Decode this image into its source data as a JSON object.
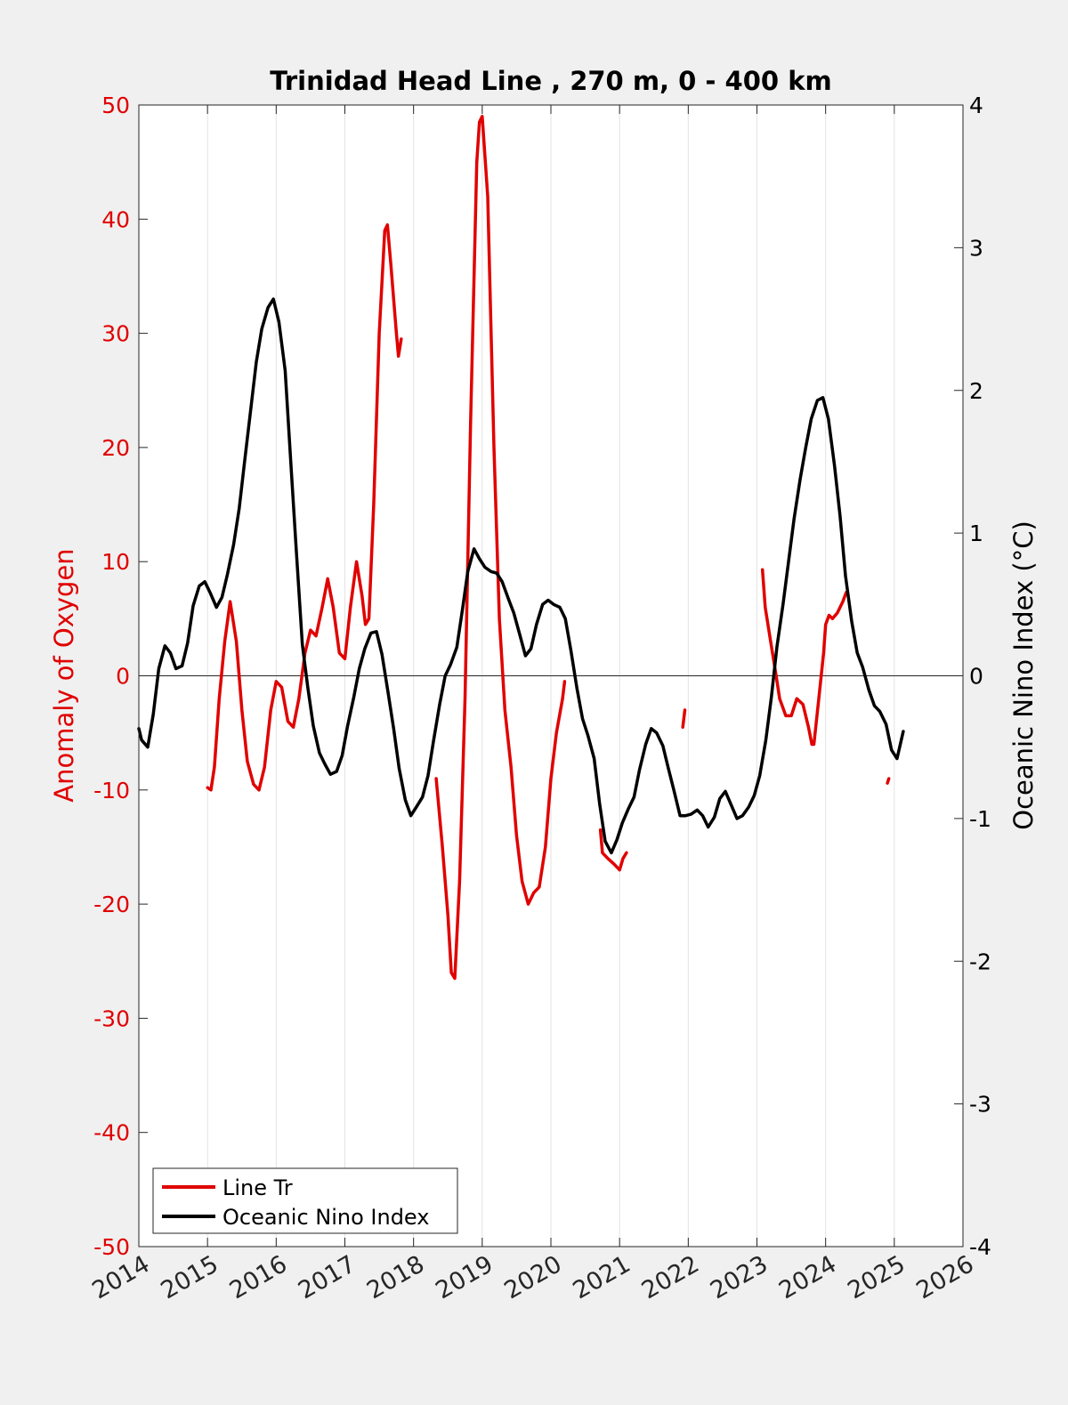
{
  "chart_data": {
    "type": "line",
    "title": "Trinidad Head Line , 270 m, 0 - 400 km",
    "xlabel": "",
    "ylabel": "Anomaly of Oxygen",
    "y2label": "Oceanic Nino Index (°C)",
    "xlim": [
      2014,
      2026
    ],
    "ylim": [
      -50,
      50
    ],
    "y2lim": [
      -4,
      4
    ],
    "x_ticks": [
      "2014",
      "2015",
      "2016",
      "2017",
      "2018",
      "2019",
      "2020",
      "2021",
      "2022",
      "2023",
      "2024",
      "2025",
      "2026"
    ],
    "y_ticks": [
      "-50",
      "-40",
      "-30",
      "-20",
      "-10",
      "0",
      "10",
      "20",
      "30",
      "40",
      "50"
    ],
    "y2_ticks": [
      "-4",
      "-3",
      "-2",
      "-1",
      "0",
      "1",
      "2",
      "3",
      "4"
    ],
    "grid": "vertical",
    "legend": {
      "position": "bottom-left",
      "entries": [
        "Line Tr",
        "Oceanic Nino Index"
      ]
    },
    "colors": {
      "line_tr": "#e00000",
      "oni": "#000000",
      "left_axis": "#e00000",
      "right_axis": "#000000"
    },
    "series": [
      {
        "name": "Line Tr",
        "axis": "left",
        "segments": [
          [
            [
              2015.0,
              -9.8
            ],
            [
              2015.05,
              -10
            ],
            [
              2015.1,
              -8
            ],
            [
              2015.17,
              -2
            ],
            [
              2015.25,
              3
            ],
            [
              2015.33,
              6.5
            ],
            [
              2015.42,
              3
            ],
            [
              2015.5,
              -3
            ],
            [
              2015.58,
              -7.5
            ],
            [
              2015.67,
              -9.5
            ],
            [
              2015.75,
              -10
            ],
            [
              2015.83,
              -8
            ],
            [
              2015.92,
              -3
            ],
            [
              2016.0,
              -0.5
            ],
            [
              2016.08,
              -1
            ],
            [
              2016.17,
              -4
            ],
            [
              2016.25,
              -4.5
            ],
            [
              2016.33,
              -2
            ],
            [
              2016.42,
              2
            ],
            [
              2016.5,
              4
            ],
            [
              2016.58,
              3.5
            ],
            [
              2016.67,
              6
            ],
            [
              2016.75,
              8.5
            ],
            [
              2016.83,
              6
            ],
            [
              2016.92,
              2
            ],
            [
              2017.0,
              1.5
            ],
            [
              2017.08,
              6
            ],
            [
              2017.17,
              10
            ],
            [
              2017.25,
              7
            ],
            [
              2017.3,
              4.5
            ],
            [
              2017.35,
              5
            ],
            [
              2017.42,
              15
            ],
            [
              2017.5,
              30
            ],
            [
              2017.58,
              39
            ],
            [
              2017.62,
              39.5
            ],
            [
              2017.67,
              36
            ],
            [
              2017.75,
              30
            ],
            [
              2017.78,
              28
            ],
            [
              2017.82,
              29.5
            ]
          ],
          [
            [
              2018.33,
              -9
            ],
            [
              2018.42,
              -15
            ],
            [
              2018.5,
              -21
            ],
            [
              2018.55,
              -26
            ],
            [
              2018.6,
              -26.5
            ],
            [
              2018.67,
              -18
            ],
            [
              2018.75,
              -2
            ],
            [
              2018.83,
              22
            ],
            [
              2018.92,
              45
            ],
            [
              2018.96,
              48.5
            ],
            [
              2019.0,
              49
            ],
            [
              2019.08,
              42
            ],
            [
              2019.17,
              20
            ],
            [
              2019.25,
              5
            ],
            [
              2019.33,
              -3
            ],
            [
              2019.42,
              -8
            ],
            [
              2019.5,
              -14
            ],
            [
              2019.58,
              -18
            ],
            [
              2019.67,
              -20
            ],
            [
              2019.75,
              -19
            ],
            [
              2019.83,
              -18.5
            ],
            [
              2019.92,
              -15
            ],
            [
              2020.0,
              -9
            ],
            [
              2020.08,
              -5
            ],
            [
              2020.17,
              -2
            ],
            [
              2020.2,
              -0.5
            ]
          ],
          [
            [
              2020.72,
              -13.5
            ],
            [
              2020.75,
              -15.5
            ],
            [
              2020.83,
              -16
            ],
            [
              2020.92,
              -16.5
            ],
            [
              2021.0,
              -17
            ],
            [
              2021.05,
              -16
            ],
            [
              2021.1,
              -15.5
            ]
          ],
          [
            [
              2021.92,
              -4.5
            ],
            [
              2021.95,
              -3
            ]
          ],
          [
            [
              2023.08,
              9.3
            ],
            [
              2023.12,
              6
            ],
            [
              2023.2,
              3
            ],
            [
              2023.28,
              0
            ],
            [
              2023.33,
              -2
            ],
            [
              2023.42,
              -3.5
            ],
            [
              2023.5,
              -3.5
            ],
            [
              2023.58,
              -2
            ],
            [
              2023.67,
              -2.5
            ],
            [
              2023.75,
              -4.5
            ],
            [
              2023.8,
              -6
            ],
            [
              2023.83,
              -6
            ],
            [
              2023.9,
              -2
            ],
            [
              2023.97,
              2
            ],
            [
              2024.0,
              4.5
            ],
            [
              2024.05,
              5.3
            ],
            [
              2024.1,
              5
            ],
            [
              2024.17,
              5.5
            ],
            [
              2024.25,
              6.5
            ],
            [
              2024.3,
              7.3
            ]
          ],
          [
            [
              2024.9,
              -9.4
            ],
            [
              2024.92,
              -9
            ]
          ]
        ]
      },
      {
        "name": "Oceanic Nino Index",
        "axis": "right",
        "segments": [
          [
            [
              2014.0,
              -0.37
            ],
            [
              2014.04,
              -0.45
            ],
            [
              2014.13,
              -0.5
            ],
            [
              2014.21,
              -0.27
            ],
            [
              2014.29,
              0.05
            ],
            [
              2014.38,
              0.21
            ],
            [
              2014.46,
              0.16
            ],
            [
              2014.54,
              0.05
            ],
            [
              2014.63,
              0.07
            ],
            [
              2014.71,
              0.23
            ],
            [
              2014.79,
              0.49
            ],
            [
              2014.88,
              0.63
            ],
            [
              2014.96,
              0.66
            ],
            [
              2015.04,
              0.58
            ],
            [
              2015.13,
              0.48
            ],
            [
              2015.21,
              0.55
            ],
            [
              2015.29,
              0.71
            ],
            [
              2015.38,
              0.92
            ],
            [
              2015.46,
              1.17
            ],
            [
              2015.54,
              1.5
            ],
            [
              2015.63,
              1.87
            ],
            [
              2015.71,
              2.2
            ],
            [
              2015.79,
              2.43
            ],
            [
              2015.88,
              2.58
            ],
            [
              2015.96,
              2.64
            ],
            [
              2016.04,
              2.48
            ],
            [
              2016.13,
              2.14
            ],
            [
              2016.21,
              1.52
            ],
            [
              2016.29,
              0.9
            ],
            [
              2016.38,
              0.22
            ],
            [
              2016.46,
              -0.08
            ],
            [
              2016.54,
              -0.35
            ],
            [
              2016.63,
              -0.54
            ],
            [
              2016.71,
              -0.62
            ],
            [
              2016.79,
              -0.69
            ],
            [
              2016.88,
              -0.67
            ],
            [
              2016.96,
              -0.56
            ],
            [
              2017.04,
              -0.35
            ],
            [
              2017.13,
              -0.15
            ],
            [
              2017.21,
              0.05
            ],
            [
              2017.29,
              0.19
            ],
            [
              2017.38,
              0.3
            ],
            [
              2017.46,
              0.31
            ],
            [
              2017.54,
              0.15
            ],
            [
              2017.63,
              -0.12
            ],
            [
              2017.71,
              -0.37
            ],
            [
              2017.79,
              -0.65
            ],
            [
              2017.88,
              -0.87
            ],
            [
              2017.96,
              -0.98
            ],
            [
              2018.04,
              -0.92
            ],
            [
              2018.13,
              -0.85
            ],
            [
              2018.21,
              -0.7
            ],
            [
              2018.29,
              -0.46
            ],
            [
              2018.38,
              -0.2
            ],
            [
              2018.46,
              0.0
            ],
            [
              2018.54,
              0.08
            ],
            [
              2018.63,
              0.2
            ],
            [
              2018.71,
              0.46
            ],
            [
              2018.79,
              0.73
            ],
            [
              2018.88,
              0.89
            ],
            [
              2018.96,
              0.82
            ],
            [
              2019.04,
              0.76
            ],
            [
              2019.13,
              0.73
            ],
            [
              2019.21,
              0.72
            ],
            [
              2019.29,
              0.66
            ],
            [
              2019.38,
              0.54
            ],
            [
              2019.46,
              0.44
            ],
            [
              2019.54,
              0.3
            ],
            [
              2019.63,
              0.14
            ],
            [
              2019.71,
              0.19
            ],
            [
              2019.79,
              0.36
            ],
            [
              2019.88,
              0.5
            ],
            [
              2019.96,
              0.53
            ],
            [
              2020.04,
              0.5
            ],
            [
              2020.13,
              0.48
            ],
            [
              2020.21,
              0.4
            ],
            [
              2020.29,
              0.18
            ],
            [
              2020.38,
              -0.09
            ],
            [
              2020.46,
              -0.3
            ],
            [
              2020.54,
              -0.42
            ],
            [
              2020.63,
              -0.58
            ],
            [
              2020.71,
              -0.9
            ],
            [
              2020.79,
              -1.16
            ],
            [
              2020.88,
              -1.24
            ],
            [
              2020.96,
              -1.15
            ],
            [
              2021.04,
              -1.03
            ],
            [
              2021.13,
              -0.93
            ],
            [
              2021.21,
              -0.85
            ],
            [
              2021.29,
              -0.66
            ],
            [
              2021.38,
              -0.48
            ],
            [
              2021.46,
              -0.37
            ],
            [
              2021.54,
              -0.4
            ],
            [
              2021.63,
              -0.49
            ],
            [
              2021.71,
              -0.65
            ],
            [
              2021.79,
              -0.8
            ],
            [
              2021.88,
              -0.98
            ],
            [
              2021.96,
              -0.98
            ],
            [
              2022.04,
              -0.97
            ],
            [
              2022.13,
              -0.94
            ],
            [
              2022.21,
              -0.98
            ],
            [
              2022.29,
              -1.06
            ],
            [
              2022.38,
              -0.99
            ],
            [
              2022.46,
              -0.86
            ],
            [
              2022.54,
              -0.81
            ],
            [
              2022.63,
              -0.91
            ],
            [
              2022.71,
              -1.0
            ],
            [
              2022.79,
              -0.98
            ],
            [
              2022.88,
              -0.92
            ],
            [
              2022.96,
              -0.84
            ],
            [
              2023.04,
              -0.7
            ],
            [
              2023.13,
              -0.45
            ],
            [
              2023.21,
              -0.15
            ],
            [
              2023.29,
              0.2
            ],
            [
              2023.38,
              0.5
            ],
            [
              2023.46,
              0.8
            ],
            [
              2023.54,
              1.1
            ],
            [
              2023.63,
              1.38
            ],
            [
              2023.71,
              1.6
            ],
            [
              2023.79,
              1.8
            ],
            [
              2023.88,
              1.93
            ],
            [
              2023.96,
              1.95
            ],
            [
              2024.04,
              1.8
            ],
            [
              2024.13,
              1.47
            ],
            [
              2024.21,
              1.12
            ],
            [
              2024.29,
              0.7
            ],
            [
              2024.38,
              0.38
            ],
            [
              2024.46,
              0.16
            ],
            [
              2024.54,
              0.06
            ],
            [
              2024.63,
              -0.1
            ],
            [
              2024.71,
              -0.21
            ],
            [
              2024.79,
              -0.25
            ],
            [
              2024.88,
              -0.34
            ],
            [
              2024.96,
              -0.52
            ],
            [
              2025.04,
              -0.58
            ],
            [
              2025.13,
              -0.39
            ]
          ]
        ]
      }
    ]
  }
}
